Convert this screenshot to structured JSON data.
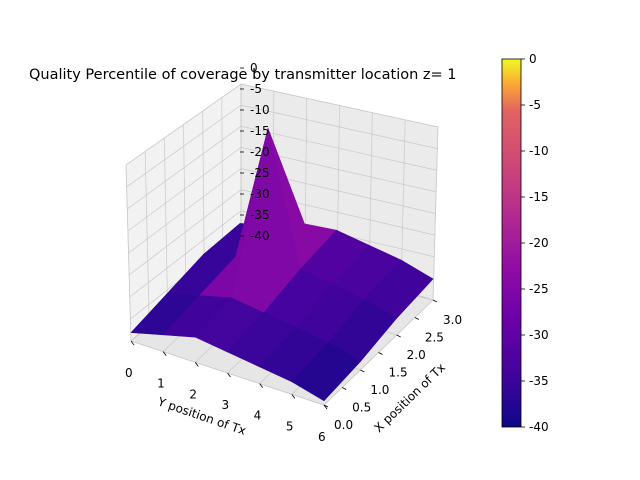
{
  "chart_data": {
    "type": "surface3d",
    "title": "Quality Percentile of coverage by transmitter location z= 1",
    "xlabel": "X position of Tx",
    "ylabel": "Y position of Tx",
    "zlim": [
      -40,
      0
    ],
    "y_ticks": [
      "0",
      "1",
      "2",
      "3",
      "4",
      "5",
      "6"
    ],
    "x_ticks": [
      "0.0",
      "0.5",
      "1.0",
      "1.5",
      "2.0",
      "2.5",
      "3.0"
    ],
    "z_ticks": [
      "0",
      "-5",
      "-10",
      "-15",
      "-20",
      "-25",
      "-30",
      "-35",
      "-40"
    ],
    "y_grid": [
      0,
      1,
      2,
      3,
      4,
      5,
      6
    ],
    "x_grid": [
      0,
      1,
      2,
      3
    ],
    "z_values": [
      [
        -38,
        -37,
        -36,
        -37
      ],
      [
        -36,
        -35,
        -34,
        -35
      ],
      [
        -34,
        -33,
        -1,
        -32
      ],
      [
        -35,
        -34,
        -32,
        -31
      ],
      [
        -36,
        -35,
        -33,
        -32
      ],
      [
        -37,
        -36,
        -34,
        -33
      ],
      [
        -39,
        -38,
        -36,
        -35
      ]
    ],
    "colorbar": {
      "colormap": "plasma",
      "range": [
        -40,
        0
      ],
      "ticks": [
        "0",
        "-5",
        "-10",
        "-15",
        "-20",
        "-25",
        "-30",
        "-35",
        "-40"
      ]
    }
  }
}
